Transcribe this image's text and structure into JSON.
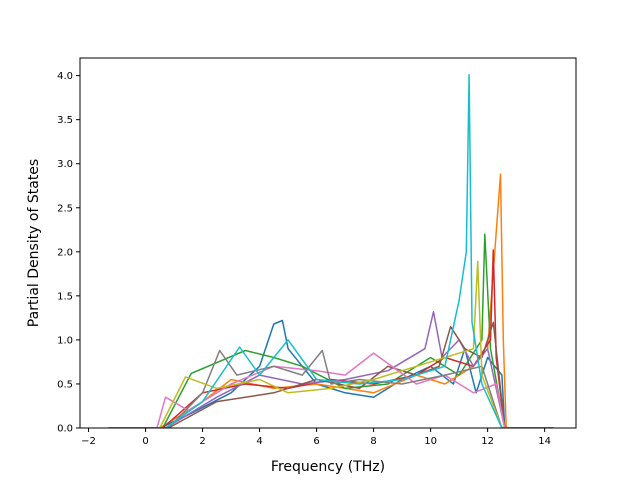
{
  "chart_data": {
    "type": "line",
    "title": "",
    "xlabel": "Frequency (THz)",
    "ylabel": "Partial Density of States",
    "xlim": [
      -2.3,
      15.1
    ],
    "ylim": [
      0.0,
      4.2
    ],
    "x_ticks": [
      -2,
      0,
      2,
      4,
      6,
      8,
      10,
      12,
      14
    ],
    "y_ticks": [
      0.0,
      0.5,
      1.0,
      1.5,
      2.0,
      2.5,
      3.0,
      3.5,
      4.0
    ],
    "x_tick_labels": [
      "−2",
      "0",
      "2",
      "4",
      "6",
      "8",
      "10",
      "12",
      "14"
    ],
    "y_tick_labels": [
      "0.0",
      "0.5",
      "1.0",
      "1.5",
      "2.0",
      "2.5",
      "3.0",
      "3.5",
      "4.0"
    ],
    "grid": false,
    "legend": "none",
    "palette": [
      "#1f77b4",
      "#ff7f0e",
      "#2ca02c",
      "#d62728",
      "#9467bd",
      "#8c564b",
      "#e377c2",
      "#7f7f7f",
      "#bcbd22",
      "#17becf"
    ],
    "series": [
      {
        "color": "#1f77b4",
        "x": [
          -1.3,
          0.5,
          1.5,
          3.0,
          4.0,
          4.5,
          4.8,
          5.0,
          6.0,
          7.0,
          8.0,
          9.0,
          10.0,
          10.8,
          11.2,
          11.6,
          12.0,
          12.5,
          12.6,
          14.3
        ],
        "y": [
          0,
          0,
          0.15,
          0.4,
          0.7,
          1.18,
          1.22,
          0.9,
          0.5,
          0.4,
          0.35,
          0.55,
          0.7,
          0.5,
          0.9,
          0.4,
          0.8,
          0.6,
          0,
          0
        ]
      },
      {
        "color": "#ff7f0e",
        "x": [
          -1.3,
          0.5,
          2.0,
          3.0,
          4.5,
          6.0,
          8.0,
          9.5,
          10.5,
          11.5,
          12.0,
          12.45,
          12.55,
          12.65,
          14.3
        ],
        "y": [
          0,
          0,
          0.3,
          0.55,
          0.45,
          0.5,
          0.4,
          0.6,
          0.5,
          0.7,
          0.9,
          2.88,
          1.0,
          0,
          0
        ]
      },
      {
        "color": "#2ca02c",
        "x": [
          -1.3,
          0.6,
          1.6,
          3.5,
          4.5,
          5.5,
          7.0,
          8.5,
          10.0,
          11.0,
          11.8,
          11.9,
          12.1,
          12.6,
          14.3
        ],
        "y": [
          0,
          0,
          0.62,
          0.88,
          0.8,
          0.7,
          0.45,
          0.5,
          0.8,
          0.6,
          1.0,
          2.2,
          0.9,
          0,
          0
        ]
      },
      {
        "color": "#d62728",
        "x": [
          -1.3,
          0.6,
          2.0,
          3.5,
          5.0,
          6.5,
          8.0,
          9.5,
          10.5,
          11.5,
          12.1,
          12.2,
          12.3,
          12.6,
          14.3
        ],
        "y": [
          0,
          0,
          0.4,
          0.5,
          0.45,
          0.55,
          0.5,
          0.6,
          0.8,
          0.7,
          1.0,
          2.02,
          0.8,
          0,
          0
        ]
      },
      {
        "color": "#9467bd",
        "x": [
          -1.3,
          0.7,
          2.5,
          4.0,
          5.5,
          7.0,
          8.5,
          9.8,
          10.1,
          10.4,
          11.0,
          11.5,
          12.0,
          12.6,
          14.3
        ],
        "y": [
          0,
          0,
          0.35,
          0.6,
          0.5,
          0.55,
          0.65,
          0.9,
          1.32,
          0.8,
          1.0,
          0.7,
          0.9,
          0,
          0
        ]
      },
      {
        "color": "#8c564b",
        "x": [
          -1.3,
          0.8,
          2.5,
          4.5,
          6.0,
          7.5,
          8.5,
          9.5,
          10.3,
          10.7,
          11.2,
          11.8,
          12.2,
          12.6,
          14.3
        ],
        "y": [
          0,
          0,
          0.3,
          0.4,
          0.55,
          0.45,
          0.7,
          0.6,
          0.7,
          1.15,
          0.9,
          0.8,
          1.2,
          0,
          0
        ]
      },
      {
        "color": "#e377c2",
        "x": [
          -1.3,
          0.4,
          0.7,
          1.5,
          3.0,
          4.5,
          6.0,
          7.0,
          8.0,
          9.5,
          10.5,
          11.5,
          12.3,
          12.6,
          14.3
        ],
        "y": [
          0,
          0,
          0.35,
          0.2,
          0.5,
          0.7,
          0.65,
          0.6,
          0.85,
          0.5,
          0.6,
          0.4,
          0.5,
          0,
          0
        ]
      },
      {
        "color": "#7f7f7f",
        "x": [
          -1.3,
          0.8,
          2.0,
          2.6,
          3.2,
          4.5,
          5.5,
          6.2,
          6.5,
          7.5,
          9.0,
          10.5,
          11.8,
          12.5,
          14.3
        ],
        "y": [
          0,
          0,
          0.4,
          0.88,
          0.6,
          0.7,
          0.6,
          0.88,
          0.5,
          0.55,
          0.5,
          0.6,
          0.7,
          0,
          0
        ]
      },
      {
        "color": "#bcbd22",
        "x": [
          -1.3,
          0.5,
          1.4,
          2.5,
          4.0,
          5.0,
          6.5,
          8.0,
          9.5,
          10.5,
          11.5,
          11.65,
          11.8,
          12.5,
          14.3
        ],
        "y": [
          0,
          0,
          0.58,
          0.45,
          0.55,
          0.4,
          0.45,
          0.55,
          0.7,
          0.8,
          0.9,
          1.89,
          0.6,
          0,
          0
        ]
      },
      {
        "color": "#17becf",
        "x": [
          -1.3,
          0.7,
          2.0,
          3.3,
          4.0,
          5.0,
          6.0,
          7.5,
          9.0,
          10.5,
          11.0,
          11.25,
          11.35,
          11.45,
          11.8,
          12.5,
          14.3
        ],
        "y": [
          0,
          0,
          0.3,
          0.92,
          0.6,
          1.0,
          0.55,
          0.5,
          0.55,
          0.7,
          1.45,
          2.0,
          4.01,
          1.2,
          0.5,
          0,
          0
        ]
      }
    ]
  }
}
